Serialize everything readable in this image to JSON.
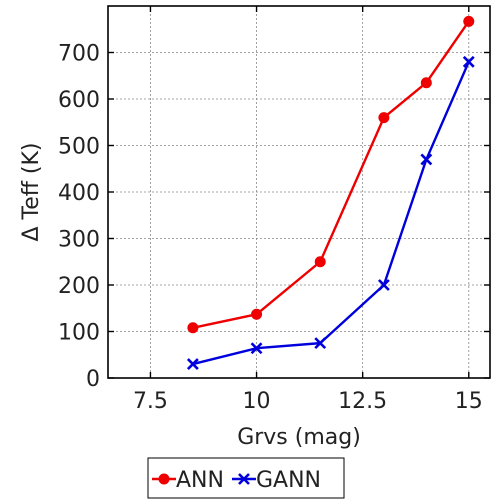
{
  "chart_data": {
    "type": "line",
    "title": "",
    "xlabel": "Grvs (mag)",
    "ylabel": "Δ Teff (K)",
    "xlim": [
      6.5,
      15.5
    ],
    "ylim": [
      0,
      800
    ],
    "xticks": [
      7.5,
      10,
      12.5,
      15
    ],
    "xtick_labels": [
      "7.5",
      "10",
      "12.5",
      "15"
    ],
    "yticks": [
      0,
      100,
      200,
      300,
      400,
      500,
      600,
      700
    ],
    "ytick_labels": [
      "0",
      "100",
      "200",
      "300",
      "400",
      "500",
      "600",
      "700"
    ],
    "grid": true,
    "legend_position": "bottom",
    "series": [
      {
        "name": "ANN",
        "color": "#ee0000",
        "marker": "circle",
        "x": [
          8.5,
          10,
          11.5,
          13,
          14,
          15
        ],
        "y": [
          108,
          137,
          250,
          560,
          635,
          767
        ]
      },
      {
        "name": "GANN",
        "color": "#0000dd",
        "marker": "x",
        "x": [
          8.5,
          10,
          11.5,
          13,
          14,
          15
        ],
        "y": [
          30,
          64,
          75,
          200,
          470,
          680
        ]
      }
    ]
  }
}
